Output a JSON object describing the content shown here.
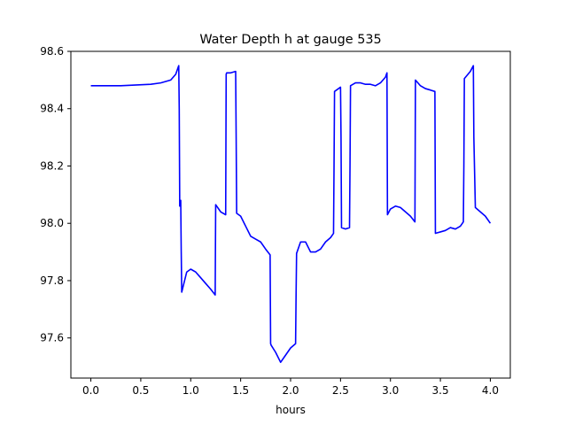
{
  "chart_data": {
    "type": "line",
    "title": "Water Depth h at gauge 535",
    "xlabel": "hours",
    "ylabel": "",
    "xlim": [
      -0.2,
      4.2
    ],
    "ylim": [
      97.46,
      98.6
    ],
    "x_ticks": [
      0.0,
      0.5,
      1.0,
      1.5,
      2.0,
      2.5,
      3.0,
      3.5,
      4.0
    ],
    "x_tick_labels": [
      "0.0",
      "0.5",
      "1.0",
      "1.5",
      "2.0",
      "2.5",
      "3.0",
      "3.5",
      "4.0"
    ],
    "y_ticks": [
      97.6,
      97.8,
      98.0,
      98.2,
      98.4,
      98.6
    ],
    "y_tick_labels": [
      "97.6",
      "97.8",
      "98.0",
      "98.2",
      "98.4",
      "98.6"
    ],
    "grid": false,
    "series": [
      {
        "color": "#0000ff",
        "x": [
          0.0,
          0.3,
          0.6,
          0.7,
          0.8,
          0.85,
          0.88,
          0.885,
          0.89,
          0.9,
          0.905,
          0.91,
          0.96,
          1.0,
          1.05,
          1.1,
          1.15,
          1.2,
          1.245,
          1.25,
          1.3,
          1.35,
          1.355,
          1.36,
          1.4,
          1.45,
          1.455,
          1.46,
          1.5,
          1.55,
          1.6,
          1.65,
          1.7,
          1.75,
          1.795,
          1.8,
          1.805,
          1.85,
          1.9,
          1.95,
          2.0,
          2.05,
          2.055,
          2.06,
          2.1,
          2.15,
          2.2,
          2.25,
          2.3,
          2.35,
          2.4,
          2.43,
          2.435,
          2.44,
          2.5,
          2.505,
          2.51,
          2.55,
          2.59,
          2.595,
          2.6,
          2.65,
          2.7,
          2.75,
          2.8,
          2.85,
          2.9,
          2.95,
          2.965,
          2.97,
          3.0,
          3.05,
          3.1,
          3.15,
          3.2,
          3.245,
          3.25,
          3.3,
          3.35,
          3.4,
          3.445,
          3.45,
          3.5,
          3.55,
          3.6,
          3.65,
          3.7,
          3.73,
          3.735,
          3.74,
          3.8,
          3.83,
          3.835,
          3.85,
          3.9,
          3.95,
          4.0
        ],
        "y": [
          98.48,
          98.48,
          98.485,
          98.49,
          98.5,
          98.52,
          98.55,
          98.4,
          98.06,
          98.08,
          97.9,
          97.76,
          97.83,
          97.84,
          97.83,
          97.81,
          97.79,
          97.77,
          97.75,
          98.065,
          98.04,
          98.03,
          98.52,
          98.525,
          98.525,
          98.53,
          98.3,
          98.035,
          98.025,
          97.99,
          97.955,
          97.945,
          97.935,
          97.91,
          97.89,
          97.58,
          97.575,
          97.55,
          97.515,
          97.54,
          97.565,
          97.58,
          97.75,
          97.895,
          97.935,
          97.935,
          97.9,
          97.9,
          97.91,
          97.935,
          97.95,
          97.965,
          98.2,
          98.46,
          98.475,
          98.3,
          97.985,
          97.98,
          97.985,
          98.2,
          98.48,
          98.49,
          98.49,
          98.485,
          98.485,
          98.48,
          98.49,
          98.51,
          98.525,
          98.03,
          98.05,
          98.06,
          98.055,
          98.04,
          98.025,
          98.005,
          98.5,
          98.48,
          98.47,
          98.465,
          98.46,
          97.965,
          97.97,
          97.975,
          97.985,
          97.98,
          97.99,
          98.005,
          98.2,
          98.505,
          98.53,
          98.55,
          98.3,
          98.055,
          98.04,
          98.025,
          98.0
        ]
      }
    ]
  }
}
